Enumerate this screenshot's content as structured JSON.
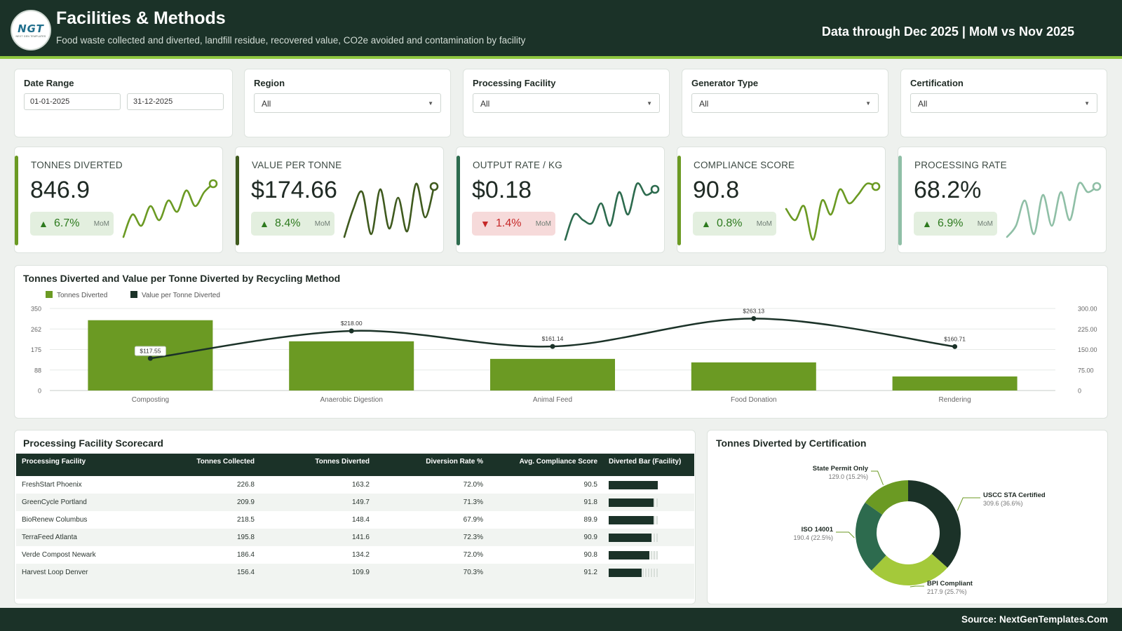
{
  "header": {
    "logo_text": "NGT",
    "logo_subtext": "NEXT GEN TEMPLATES",
    "title": "Facilities & Methods",
    "subtitle": "Food waste collected and diverted, landfill residue, recovered value, CO2e avoided and contamination by facility",
    "period": "Data through Dec 2025 | MoM vs Nov 2025"
  },
  "filters": {
    "date_range": {
      "label": "Date Range",
      "start": "01-01-2025",
      "end": "31-12-2025"
    },
    "region": {
      "label": "Region",
      "value": "All"
    },
    "facility": {
      "label": "Processing Facility",
      "value": "All"
    },
    "generator": {
      "label": "Generator Type",
      "value": "All"
    },
    "certification": {
      "label": "Certification",
      "value": "All"
    }
  },
  "kpis": [
    {
      "label": "TONNES DIVERTED",
      "value": "846.9",
      "delta": "6.7%",
      "direction": "up",
      "mom": "MoM",
      "color": "#6b9a23",
      "spark": [
        0.05,
        0.45,
        0.25,
        0.6,
        0.35,
        0.7,
        0.5,
        0.88,
        0.6,
        0.85,
        1.0
      ]
    },
    {
      "label": "VALUE PER TONNE",
      "value": "$174.66",
      "delta": "8.4%",
      "direction": "up",
      "mom": "MoM",
      "color": "#3f5a1e",
      "spark": [
        0.05,
        0.55,
        0.85,
        0.1,
        0.9,
        0.2,
        0.75,
        0.15,
        1.0,
        0.4,
        0.95
      ]
    },
    {
      "label": "OUTPUT RATE / KG",
      "value": "$0.18",
      "delta": "1.4%",
      "direction": "down",
      "mom": "MoM",
      "color": "#2d6b4e",
      "spark": [
        0.0,
        0.45,
        0.35,
        0.3,
        0.65,
        0.25,
        0.85,
        0.45,
        1.0,
        0.8,
        0.9
      ]
    },
    {
      "label": "COMPLIANCE SCORE",
      "value": "90.8",
      "delta": "0.8%",
      "direction": "up",
      "mom": "MoM",
      "color": "#6b9a23",
      "spark": [
        0.55,
        0.35,
        0.6,
        0.0,
        0.7,
        0.45,
        0.9,
        0.65,
        0.8,
        1.0,
        0.95
      ]
    },
    {
      "label": "PROCESSING RATE",
      "value": "68.2%",
      "delta": "6.9%",
      "direction": "up",
      "mom": "MoM",
      "color": "#8fbfa6",
      "spark": [
        0.05,
        0.25,
        0.7,
        0.1,
        0.8,
        0.25,
        0.85,
        0.35,
        1.0,
        0.85,
        0.95
      ]
    }
  ],
  "combo": {
    "title": "Tonnes Diverted and Value per Tonne Diverted by Recycling Method",
    "legend_bar": "Tonnes Diverted",
    "legend_line": "Value per Tonne Diverted"
  },
  "table": {
    "title": "Processing Facility Scorecard",
    "columns": [
      "Processing Facility",
      "Tonnes Collected",
      "Tonnes Diverted",
      "Diversion Rate %",
      "Avg. Compliance Score",
      "Diverted Bar (Facility)"
    ],
    "rows": [
      {
        "facility": "FreshStart Phoenix",
        "collected": "226.8",
        "diverted": "163.2",
        "rate": "72.0%",
        "score": "90.5",
        "bar": 1.0
      },
      {
        "facility": "GreenCycle Portland",
        "collected": "209.9",
        "diverted": "149.7",
        "rate": "71.3%",
        "score": "91.8",
        "bar": 0.917
      },
      {
        "facility": "BioRenew Columbus",
        "collected": "218.5",
        "diverted": "148.4",
        "rate": "67.9%",
        "score": "89.9",
        "bar": 0.909
      },
      {
        "facility": "TerraFeed Atlanta",
        "collected": "195.8",
        "diverted": "141.6",
        "rate": "72.3%",
        "score": "90.9",
        "bar": 0.868
      },
      {
        "facility": "Verde Compost Newark",
        "collected": "186.4",
        "diverted": "134.2",
        "rate": "72.0%",
        "score": "90.8",
        "bar": 0.822
      },
      {
        "facility": "Harvest Loop Denver",
        "collected": "156.4",
        "diverted": "109.9",
        "rate": "70.3%",
        "score": "91.2",
        "bar": 0.673
      }
    ]
  },
  "donut": {
    "title": "Tonnes Diverted by Certification"
  },
  "footer": {
    "source": "Source: NextGenTemplates.Com"
  },
  "chart_data": [
    {
      "type": "bar",
      "title": "Tonnes Diverted and Value per Tonne Diverted by Recycling Method",
      "categories": [
        "Composting",
        "Anaerobic Digestion",
        "Animal Feed",
        "Food Donation",
        "Rendering"
      ],
      "series": [
        {
          "name": "Tonnes Diverted",
          "type": "bar",
          "axis": "left",
          "color": "#6b9a23",
          "values": [
            300,
            210,
            135,
            120,
            60
          ]
        },
        {
          "name": "Value per Tonne Diverted",
          "type": "line",
          "axis": "right",
          "color": "#1b3228",
          "values": [
            117.55,
            218.0,
            161.14,
            263.13,
            160.71
          ],
          "labels": [
            "$117.55",
            "$218.00",
            "$161.14",
            "$263.13",
            "$160.71"
          ]
        }
      ],
      "y_left_ticks": [
        "0",
        "88",
        "175",
        "262",
        "350"
      ],
      "ylim_left": [
        0,
        350
      ],
      "y_right_ticks": [
        "0",
        "75.00",
        "150.00",
        "225.00",
        "300.00"
      ],
      "ylim_right": [
        0,
        300
      ],
      "grid": true,
      "legend_position": "top-left"
    },
    {
      "type": "pie",
      "title": "Tonnes Diverted by Certification",
      "donut": true,
      "slices": [
        {
          "name": "USCC STA Certified",
          "value": 309.6,
          "pct": "36.6%",
          "label": "309.6 (36.6%)",
          "color": "#1b3228"
        },
        {
          "name": "BPI Compliant",
          "value": 217.9,
          "pct": "25.7%",
          "label": "217.9 (25.7%)",
          "color": "#a4c93a"
        },
        {
          "name": "ISO 14001",
          "value": 190.4,
          "pct": "22.5%",
          "label": "190.4 (22.5%)",
          "color": "#2d6b4e"
        },
        {
          "name": "State Permit Only",
          "value": 129.0,
          "pct": "15.2%",
          "label": "129.0 (15.2%)",
          "color": "#6b9a23"
        }
      ]
    }
  ]
}
